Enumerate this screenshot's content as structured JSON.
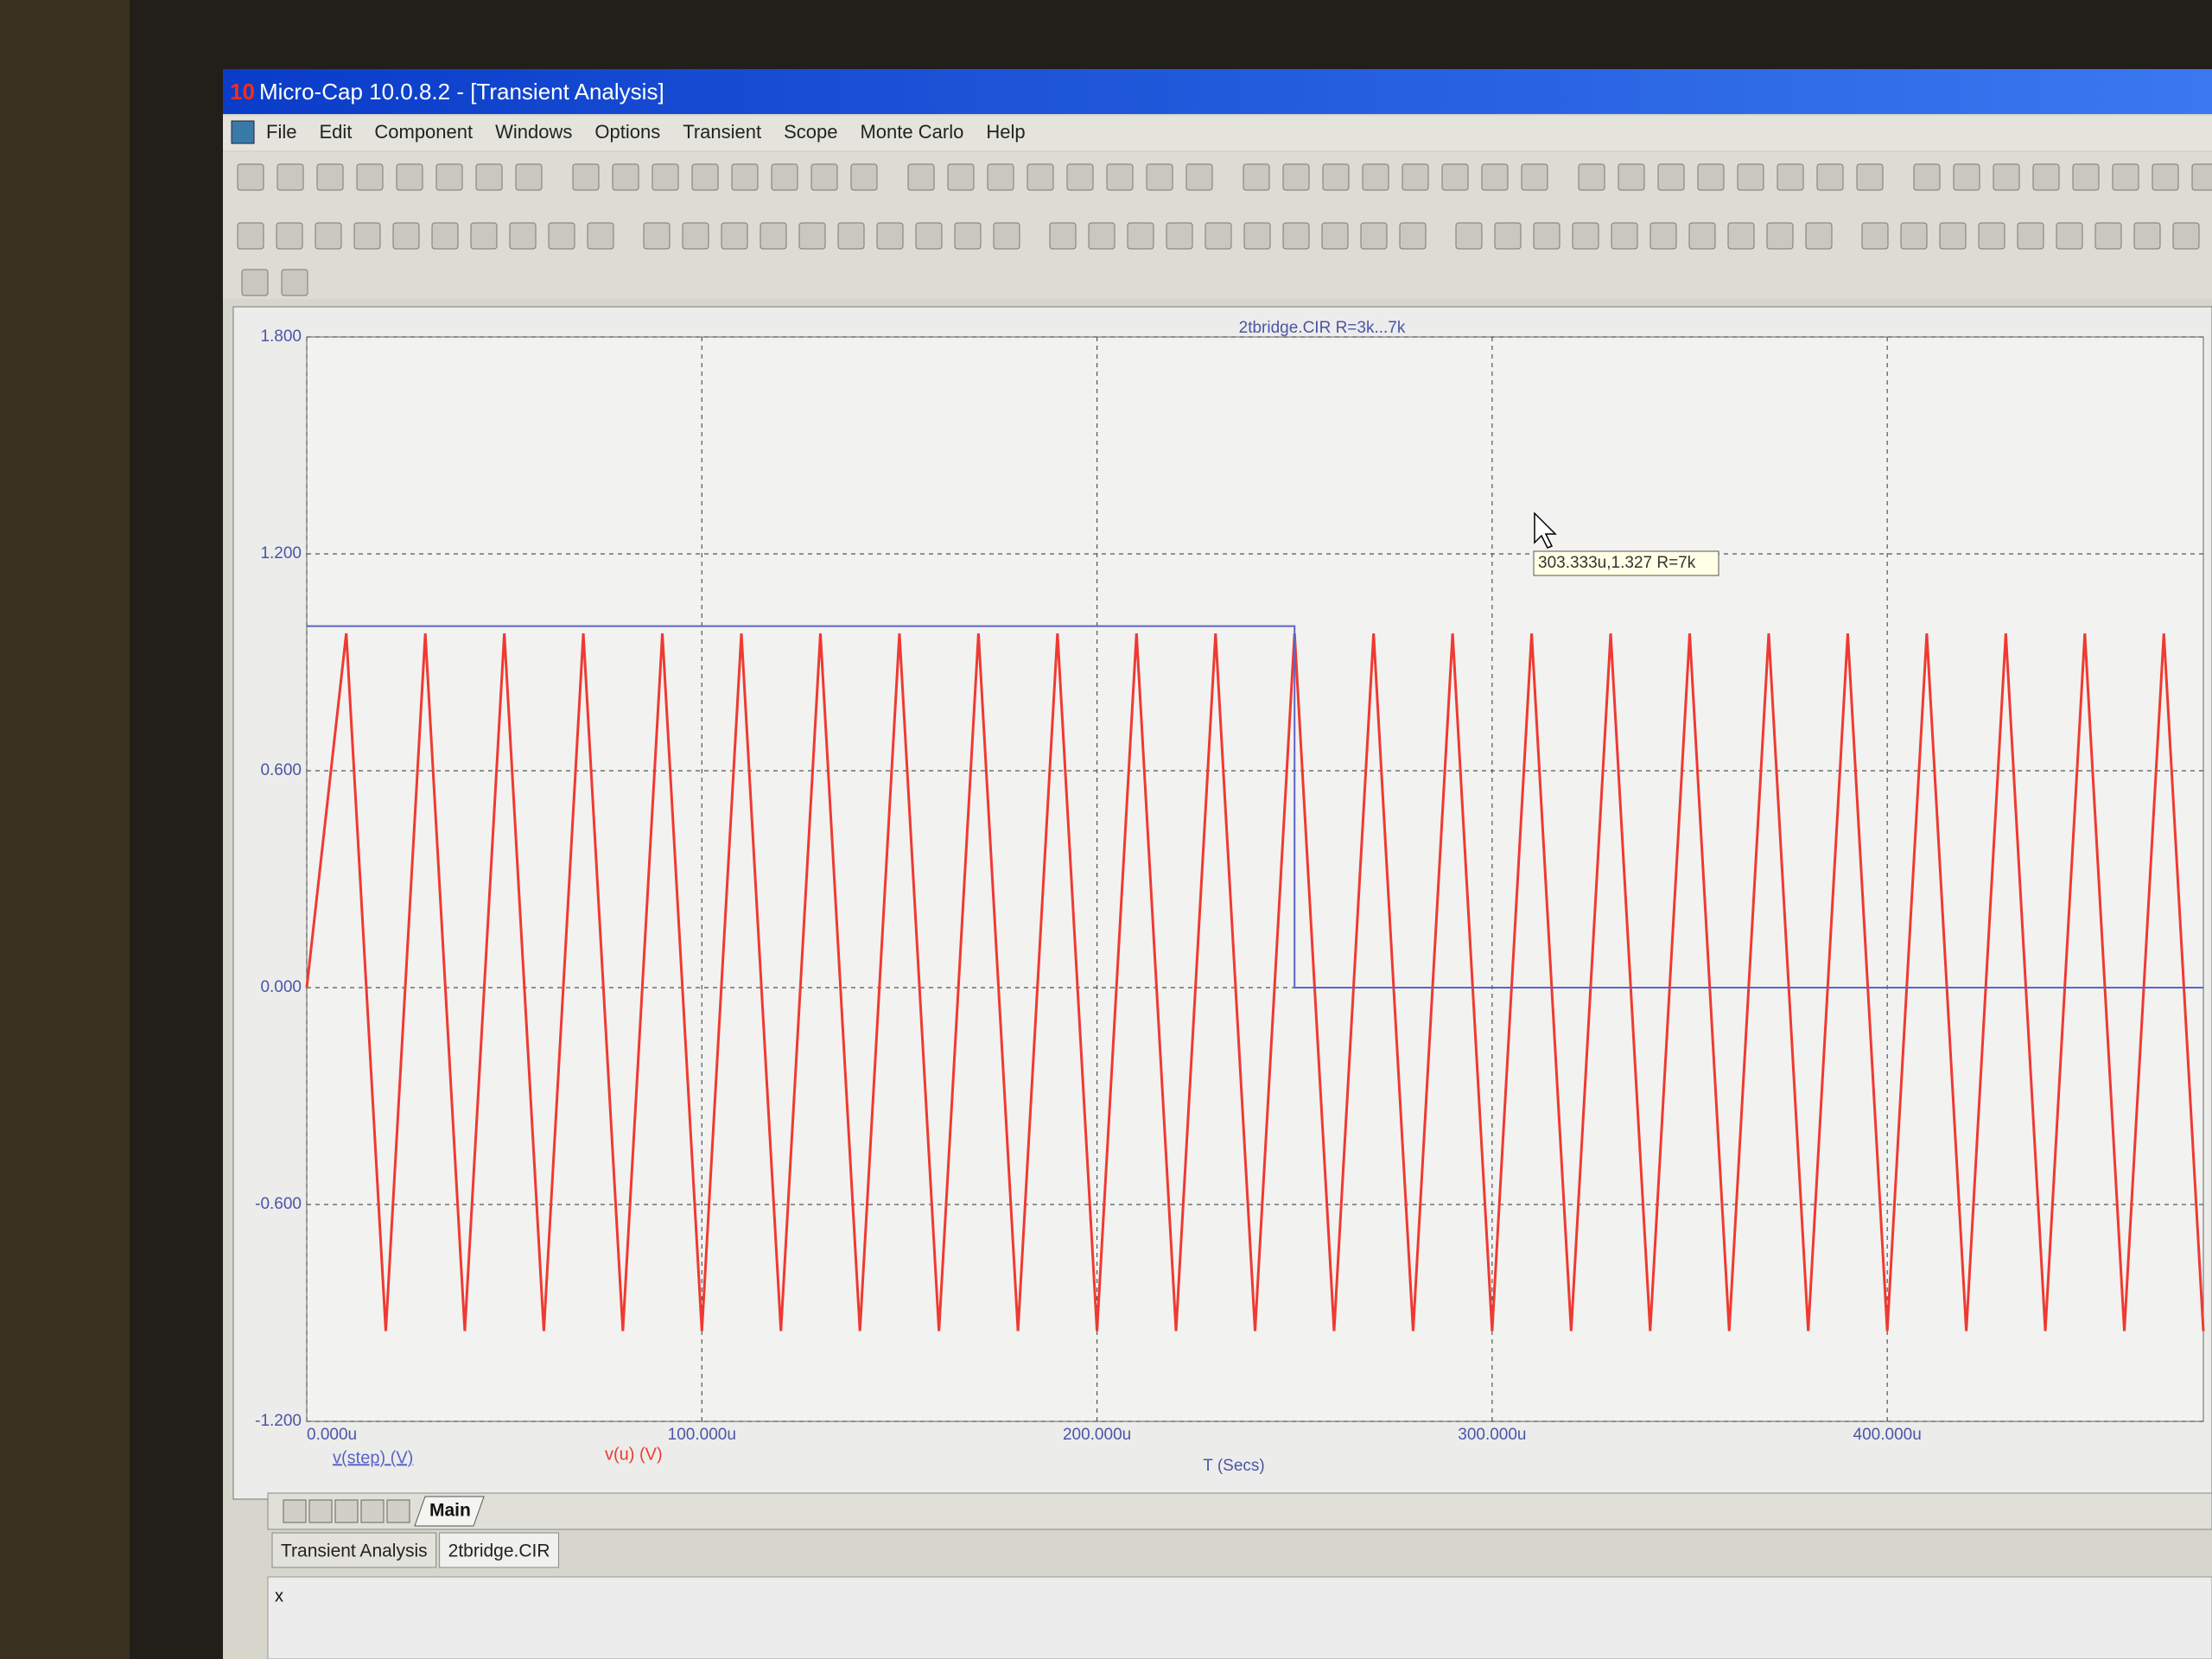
{
  "window": {
    "icon": "10",
    "title": "Micro-Cap 10.0.8.2 - [Transient Analysis]"
  },
  "menu": [
    "File",
    "Edit",
    "Component",
    "Windows",
    "Options",
    "Transient",
    "Scope",
    "Monte Carlo",
    "Help"
  ],
  "chart_data": {
    "type": "line",
    "title": "2tbridge.CIR R=3k...7k",
    "xlabel": "T (Secs)",
    "xlim": [
      0,
      0.00048
    ],
    "ylim": [
      -1.2,
      1.8
    ],
    "xticks": [
      {
        "value": 0,
        "label": "0.000u"
      },
      {
        "value": 0.0001,
        "label": "100.000u"
      },
      {
        "value": 0.0002,
        "label": "200.000u"
      },
      {
        "value": 0.0003,
        "label": "300.000u"
      },
      {
        "value": 0.0004,
        "label": "400.000u"
      }
    ],
    "yticks": [
      {
        "value": 1.8,
        "label": "1.800"
      },
      {
        "value": 1.2,
        "label": "1.200"
      },
      {
        "value": 0.6,
        "label": "0.600"
      },
      {
        "value": 0,
        "label": "0.000"
      },
      {
        "value": -0.6,
        "label": "-0.600"
      },
      {
        "value": -1.2,
        "label": "-1.200"
      }
    ],
    "grid": true,
    "series": [
      {
        "name": "v(step) (V)",
        "color": "#5a64c8",
        "x": [
          0,
          0.00025,
          0.00025,
          0.00048
        ],
        "values": [
          1,
          1,
          0,
          0
        ]
      },
      {
        "name": "v(u) (V)",
        "color": "#ee3a32",
        "x": [
          0,
          1e-05,
          2e-05,
          3e-05,
          4e-05,
          5e-05,
          6e-05,
          7e-05,
          8e-05,
          9e-05,
          0.0001,
          0.00011,
          0.00012,
          0.00013,
          0.00014,
          0.00015,
          0.00016,
          0.00017,
          0.00018,
          0.00019,
          0.0002,
          0.00021,
          0.00022,
          0.00023,
          0.00024,
          0.00025,
          0.00026,
          0.00027,
          0.00028,
          0.00029,
          0.0003,
          0.00031,
          0.00032,
          0.00033,
          0.00034,
          0.00035,
          0.00036,
          0.00037,
          0.00038,
          0.00039,
          0.0004,
          0.00041,
          0.00042,
          0.00043,
          0.00044,
          0.00045,
          0.00046,
          0.00047,
          0.00048
        ],
        "values": [
          0,
          0.98,
          -0.95,
          0.98,
          -0.95,
          0.98,
          -0.95,
          0.98,
          -0.95,
          0.98,
          -0.95,
          0.98,
          -0.95,
          0.98,
          -0.95,
          0.98,
          -0.95,
          0.98,
          -0.95,
          0.98,
          -0.95,
          0.98,
          -0.95,
          0.98,
          -0.95,
          0.98,
          -0.95,
          0.98,
          -0.95,
          0.98,
          -0.95,
          0.98,
          -0.95,
          0.98,
          -0.95,
          0.98,
          -0.95,
          0.98,
          -0.95,
          0.98,
          -0.95,
          0.98,
          -0.95,
          0.98,
          -0.95,
          0.98,
          -0.95,
          0.98,
          -0.95
        ]
      }
    ],
    "cursor_tooltip": "303.333u,1.327 R=7k"
  },
  "tabs": {
    "sheet": "Main",
    "bottom": [
      "Transient Analysis",
      "2tbridge.CIR"
    ]
  },
  "status": "x"
}
